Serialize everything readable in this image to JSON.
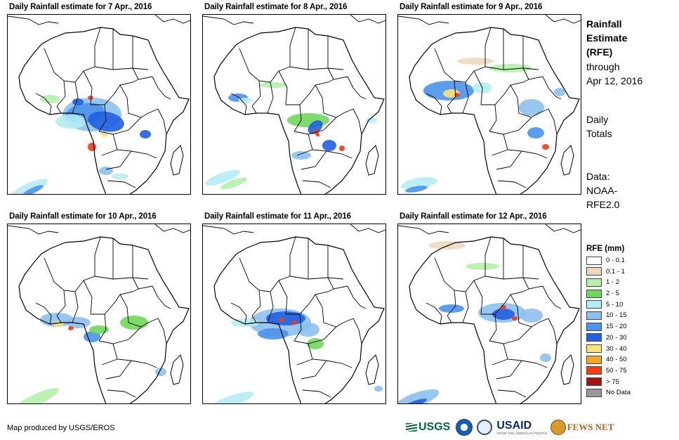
{
  "panels": [
    {
      "title": "Daily Rainfall estimate for 7 Apr., 2016"
    },
    {
      "title": "Daily Rainfall estimate for 8 Apr., 2016"
    },
    {
      "title": "Daily Rainfall estimate for 9 Apr., 2016"
    },
    {
      "title": "Daily Rainfall estimate for 10 Apr., 2016"
    },
    {
      "title": "Daily Rainfall estimate for 11 Apr., 2016"
    },
    {
      "title": "Daily Rainfall estimate for 12 Apr., 2016"
    }
  ],
  "side": {
    "title_line1": "Rainfall",
    "title_line2": "Estimate",
    "title_line3": "(RFE)",
    "through_label": "through",
    "through_date": "Apr 12, 2016",
    "daily_line1": "Daily",
    "daily_line2": "Totals",
    "data_line1": "Data:",
    "data_line2": "NOAA-",
    "data_line3": "RFE2.0"
  },
  "legend": {
    "title": "RFE (mm)",
    "items": [
      {
        "label": "0 - 0.1",
        "color": "#ffffff"
      },
      {
        "label": "0.1 - 1",
        "color": "#ecd9bb"
      },
      {
        "label": "1 - 2",
        "color": "#b4f0a8"
      },
      {
        "label": "2 - 5",
        "color": "#6fd85a"
      },
      {
        "label": "5 - 10",
        "color": "#b4ecf4"
      },
      {
        "label": "10 - 15",
        "color": "#8cc0f0"
      },
      {
        "label": "15 - 20",
        "color": "#4a94ec"
      },
      {
        "label": "20 - 30",
        "color": "#1f5fe0"
      },
      {
        "label": "30 - 40",
        "color": "#fbe37a"
      },
      {
        "label": "40 - 50",
        "color": "#f5a623"
      },
      {
        "label": "50 - 75",
        "color": "#f53b13"
      },
      {
        "label": "> 75",
        "color": "#a31515"
      },
      {
        "label": "No Data",
        "color": "#999999"
      }
    ]
  },
  "credit": "Map produced by USGS/EROS",
  "logos": {
    "usgs": "USGS",
    "usaid": "USAID",
    "usaid_sub": "FROM THE AMERICAN PEOPLE",
    "fews": "FEWS NET"
  }
}
